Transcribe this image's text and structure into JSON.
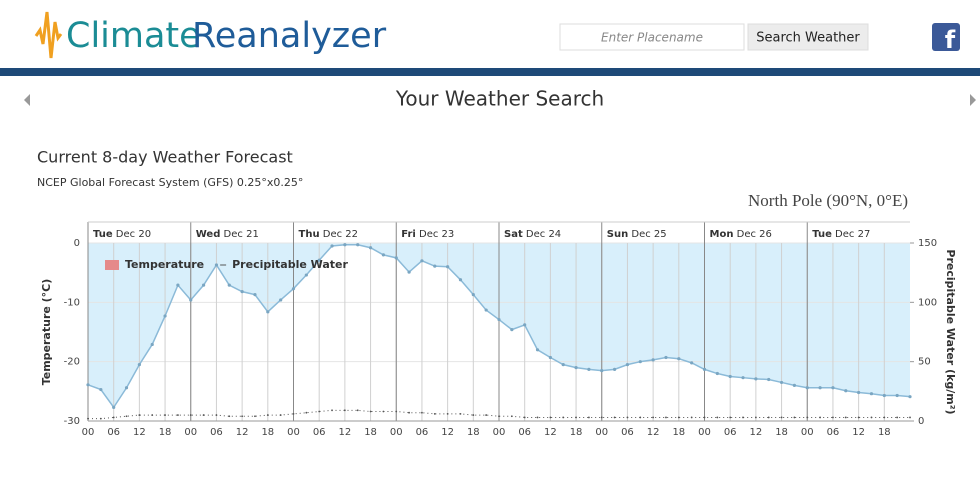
{
  "header": {
    "logo": {
      "part1": "Climate",
      "part2": "Reanalyzer"
    },
    "search_placeholder": "Enter Placename",
    "search_button": "Search Weather",
    "social": "f"
  },
  "nav": {
    "title": "Your Weather Search"
  },
  "chart_data": {
    "type": "line",
    "title": "Current 8-day Weather Forecast",
    "subtitle": "NCEP Global Forecast System (GFS) 0.25°x0.25°",
    "location": "North Pole (90°N, 0°E)",
    "y_label": "Temperature (°C)",
    "y2_label": "Precipitable Water (kg/m²)",
    "x": [
      0,
      3,
      6,
      9,
      12,
      15,
      18,
      21,
      24,
      27,
      30,
      33,
      36,
      39,
      42,
      45,
      48,
      51,
      54,
      57,
      60,
      63,
      66,
      69,
      72,
      75,
      78,
      81,
      84,
      87,
      90,
      93,
      96,
      99,
      102,
      105,
      108,
      111,
      114,
      117,
      120,
      123,
      126,
      129,
      132,
      135,
      138,
      141,
      144,
      147,
      150,
      153,
      156,
      159,
      162,
      165,
      168,
      171,
      174,
      177,
      180,
      183,
      186,
      189,
      192
    ],
    "xlim": [
      0,
      192
    ],
    "xticks": [
      {
        "value": 0,
        "label": "00"
      },
      {
        "value": 6,
        "label": "06"
      },
      {
        "value": 12,
        "label": "12"
      },
      {
        "value": 18,
        "label": "18"
      },
      {
        "value": 24,
        "label": "00"
      },
      {
        "value": 30,
        "label": "06"
      },
      {
        "value": 36,
        "label": "12"
      },
      {
        "value": 42,
        "label": "18"
      },
      {
        "value": 48,
        "label": "00"
      },
      {
        "value": 54,
        "label": "06"
      },
      {
        "value": 60,
        "label": "12"
      },
      {
        "value": 66,
        "label": "18"
      },
      {
        "value": 72,
        "label": "00"
      },
      {
        "value": 78,
        "label": "06"
      },
      {
        "value": 84,
        "label": "12"
      },
      {
        "value": 90,
        "label": "18"
      },
      {
        "value": 96,
        "label": "00"
      },
      {
        "value": 102,
        "label": "06"
      },
      {
        "value": 108,
        "label": "12"
      },
      {
        "value": 114,
        "label": "18"
      },
      {
        "value": 120,
        "label": "00"
      },
      {
        "value": 126,
        "label": "06"
      },
      {
        "value": 132,
        "label": "12"
      },
      {
        "value": 138,
        "label": "18"
      },
      {
        "value": 144,
        "label": "00"
      },
      {
        "value": 150,
        "label": "06"
      },
      {
        "value": 156,
        "label": "12"
      },
      {
        "value": 162,
        "label": "18"
      },
      {
        "value": 168,
        "label": "00"
      },
      {
        "value": 174,
        "label": "06"
      },
      {
        "value": 180,
        "label": "12"
      },
      {
        "value": 186,
        "label": "18"
      }
    ],
    "day_labels": [
      {
        "value": 0,
        "label": "Tue Dec 20"
      },
      {
        "value": 24,
        "label": "Wed Dec 21"
      },
      {
        "value": 48,
        "label": "Thu Dec 22"
      },
      {
        "value": 72,
        "label": "Fri Dec 23"
      },
      {
        "value": 96,
        "label": "Sat Dec 24"
      },
      {
        "value": 120,
        "label": "Sun Dec 25"
      },
      {
        "value": 144,
        "label": "Mon Dec 26"
      },
      {
        "value": 168,
        "label": "Tue Dec 27"
      }
    ],
    "ylim": [
      -30,
      0
    ],
    "yticks": [
      -30,
      -20,
      -10,
      0
    ],
    "y2lim": [
      0,
      150
    ],
    "y2ticks": [
      0,
      50,
      100,
      150
    ],
    "grid": true,
    "legend": "top-left",
    "series": [
      {
        "name": "Temperature",
        "color": "#8bbad8",
        "fill": "#d8effb",
        "legend_color": "#e58a8a",
        "values": [
          -23.9,
          -24.7,
          -27.7,
          -24.4,
          -20.5,
          -17.1,
          -12.3,
          -7.1,
          -9.6,
          -7.1,
          -3.7,
          -7.1,
          -8.2,
          -8.7,
          -11.6,
          -9.6,
          -7.7,
          -5.4,
          -2.9,
          -0.5,
          -0.3,
          -0.3,
          -0.8,
          -2.0,
          -2.5,
          -4.9,
          -3.0,
          -3.9,
          -4.0,
          -6.2,
          -8.7,
          -11.3,
          -12.9,
          -14.6,
          -13.8,
          -18.0,
          -19.3,
          -20.5,
          -21.0,
          -21.3,
          -21.5,
          -21.3,
          -20.5,
          -20.0,
          -19.7,
          -19.3,
          -19.5,
          -20.2,
          -21.3,
          -22.0,
          -22.5,
          -22.7,
          -22.9,
          -23.0,
          -23.5,
          -24.0,
          -24.4,
          -24.4,
          -24.4,
          -24.9,
          -25.2,
          -25.4,
          -25.7,
          -25.7,
          -25.9
        ]
      },
      {
        "name": "Precipitable Water",
        "color": "#555555",
        "axis": "y2",
        "values": [
          2,
          2,
          3,
          4,
          5,
          5,
          5,
          5,
          5,
          5,
          5,
          4,
          4,
          4,
          5,
          5,
          6,
          7,
          8,
          9,
          9,
          9,
          8,
          8,
          8,
          7,
          7,
          6,
          6,
          6,
          5,
          5,
          4,
          4,
          3,
          3,
          3,
          3,
          3,
          3,
          3,
          3,
          3,
          3,
          3,
          3,
          3,
          3,
          3,
          3,
          3,
          3,
          3,
          3,
          3,
          3,
          3,
          3,
          3,
          3,
          3,
          3,
          3,
          3,
          3
        ]
      }
    ]
  }
}
